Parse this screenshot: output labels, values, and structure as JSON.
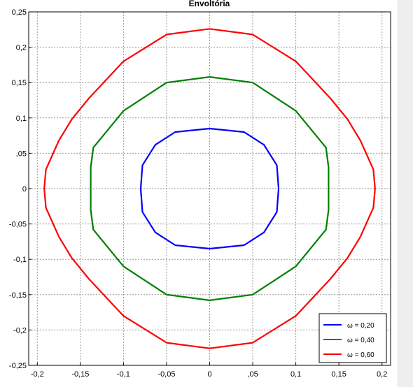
{
  "chart_data": {
    "type": "line",
    "title": "Envoltória",
    "xlabel": "",
    "ylabel": "",
    "xlim": [
      -0.21,
      0.21
    ],
    "ylim": [
      -0.25,
      0.25
    ],
    "grid": true,
    "legend_position": "bottom-right",
    "x_ticks": [
      -0.2,
      -0.15,
      -0.1,
      -0.05,
      0,
      0.05,
      0.1,
      0.15,
      0.2
    ],
    "x_tick_labels": [
      "-0,2",
      "-0,15",
      "-0,1",
      "-0,05",
      "0",
      ",05",
      "0,1",
      "0,15",
      "0,2"
    ],
    "y_ticks": [
      0.25,
      0.2,
      0.15,
      0.1,
      0.05,
      0,
      -0.05,
      -0.1,
      -0.15,
      -0.2,
      -0.25
    ],
    "y_tick_labels": [
      "0,25",
      "0,2",
      "0,15",
      "0,1",
      ",05",
      "0",
      "-0,05",
      "-0,1",
      "-0,15",
      "-0,2",
      "-0,25"
    ],
    "series": [
      {
        "name": "ω = 0,20",
        "color": "#0000ff",
        "points": [
          [
            0.0,
            0.085
          ],
          [
            0.04,
            0.08
          ],
          [
            0.063,
            0.062
          ],
          [
            0.078,
            0.033
          ],
          [
            0.08,
            0.0
          ],
          [
            0.078,
            -0.033
          ],
          [
            0.063,
            -0.062
          ],
          [
            0.04,
            -0.08
          ],
          [
            0.0,
            -0.085
          ],
          [
            -0.04,
            -0.08
          ],
          [
            -0.063,
            -0.062
          ],
          [
            -0.078,
            -0.033
          ],
          [
            -0.08,
            0.0
          ],
          [
            -0.078,
            0.033
          ],
          [
            -0.063,
            0.062
          ],
          [
            -0.04,
            0.08
          ],
          [
            0.0,
            0.085
          ]
        ]
      },
      {
        "name": "ω = 0,40",
        "color": "#008000",
        "points": [
          [
            0.0,
            0.158
          ],
          [
            0.05,
            0.15
          ],
          [
            0.1,
            0.11
          ],
          [
            0.135,
            0.058
          ],
          [
            0.138,
            0.03
          ],
          [
            0.138,
            0.0
          ],
          [
            0.138,
            -0.03
          ],
          [
            0.135,
            -0.058
          ],
          [
            0.1,
            -0.11
          ],
          [
            0.05,
            -0.15
          ],
          [
            0.0,
            -0.158
          ],
          [
            -0.05,
            -0.15
          ],
          [
            -0.1,
            -0.11
          ],
          [
            -0.135,
            -0.058
          ],
          [
            -0.138,
            -0.03
          ],
          [
            -0.138,
            0.0
          ],
          [
            -0.138,
            0.03
          ],
          [
            -0.135,
            0.058
          ],
          [
            -0.1,
            0.11
          ],
          [
            -0.05,
            0.15
          ],
          [
            0.0,
            0.158
          ]
        ]
      },
      {
        "name": "ω = 0,60",
        "color": "#ff0000",
        "points": [
          [
            0.0,
            0.226
          ],
          [
            0.05,
            0.218
          ],
          [
            0.1,
            0.18
          ],
          [
            0.14,
            0.128
          ],
          [
            0.16,
            0.098
          ],
          [
            0.175,
            0.068
          ],
          [
            0.19,
            0.027
          ],
          [
            0.192,
            0.0
          ],
          [
            0.19,
            -0.027
          ],
          [
            0.175,
            -0.068
          ],
          [
            0.16,
            -0.098
          ],
          [
            0.14,
            -0.128
          ],
          [
            0.1,
            -0.18
          ],
          [
            0.05,
            -0.218
          ],
          [
            0.0,
            -0.226
          ],
          [
            -0.05,
            -0.218
          ],
          [
            -0.1,
            -0.18
          ],
          [
            -0.14,
            -0.128
          ],
          [
            -0.16,
            -0.098
          ],
          [
            -0.175,
            -0.068
          ],
          [
            -0.19,
            -0.027
          ],
          [
            -0.192,
            0.0
          ],
          [
            -0.19,
            0.027
          ],
          [
            -0.175,
            0.068
          ],
          [
            -0.16,
            0.098
          ],
          [
            -0.14,
            0.128
          ],
          [
            -0.1,
            0.18
          ],
          [
            -0.05,
            0.218
          ],
          [
            0.0,
            0.226
          ]
        ]
      }
    ]
  }
}
